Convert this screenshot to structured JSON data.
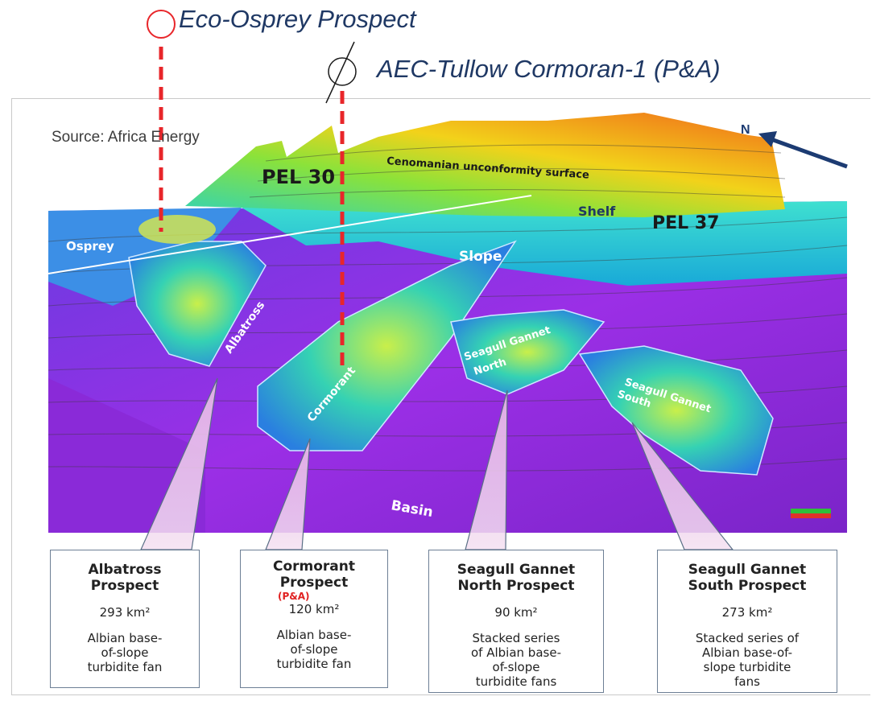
{
  "wells": {
    "eco_osprey": "Eco-Osprey Prospect",
    "cormoran": "AEC-Tullow Cormoran-1 (P&A)"
  },
  "source": "Source: Africa Energy",
  "map_labels": {
    "pel30": "PEL 30",
    "pel37": "PEL 37",
    "unconformity": "Cenomanian unconformity surface",
    "shelf": "Shelf",
    "slope": "Slope",
    "basin": "Basin",
    "osprey": "Osprey",
    "albatross": "Albatross",
    "cormorant": "Cormorant",
    "sgn": [
      "Seagull Gannet",
      "North"
    ],
    "sgs": [
      "Seagull Gannet",
      "South"
    ],
    "north": "N"
  },
  "prospects": [
    {
      "title": [
        "Albatross",
        "Prospect"
      ],
      "pa": "",
      "area": "293 km²",
      "desc": [
        "Albian base-",
        "of-slope",
        "turbidite fan"
      ]
    },
    {
      "title": [
        "Cormorant",
        "Prospect"
      ],
      "pa": "(P&A)",
      "area": "120 km²",
      "desc": [
        "Albian base-",
        "of-slope",
        "turbidite fan"
      ]
    },
    {
      "title": [
        "Seagull Gannet",
        "North Prospect"
      ],
      "pa": "",
      "area": "90 km²",
      "desc": [
        "Stacked series",
        "of Albian base-",
        "of-slope",
        "turbidite fans"
      ]
    },
    {
      "title": [
        "Seagull Gannet",
        "South Prospect"
      ],
      "pa": "",
      "area": "273 km²",
      "desc": [
        "Stacked series of",
        "Albian base-of-",
        "slope turbidite",
        "fans"
      ]
    }
  ],
  "colors": {
    "well_marker": "#e8262a",
    "label_blue": "#1f3864",
    "arrow": "#1c3b72"
  }
}
